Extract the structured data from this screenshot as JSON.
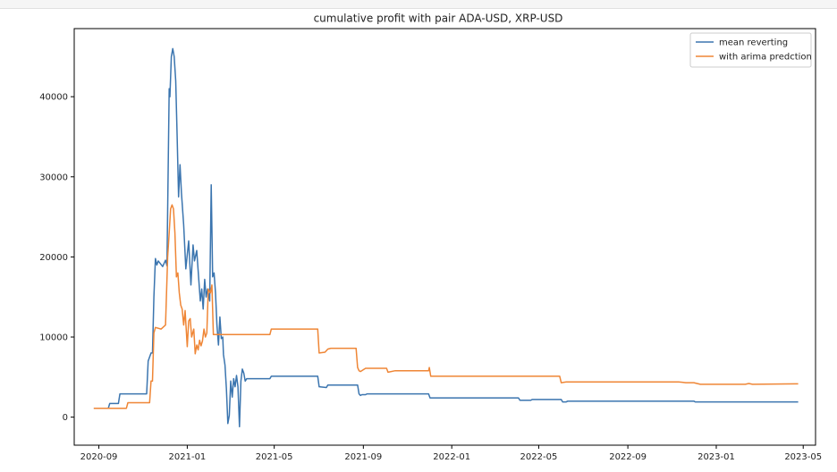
{
  "colors": {
    "series_0": "#3b75af",
    "series_1": "#ef8636"
  },
  "chart_data": {
    "type": "line",
    "title": "cumulative profit with pair ADA-USD, XRP-USD",
    "xlabel": "",
    "ylabel": "",
    "x_axis": {
      "type": "date",
      "range": [
        "2020-07-29",
        "2023-05-18"
      ],
      "ticks": [
        "2020-09-01",
        "2021-01-01",
        "2021-05-01",
        "2021-09-01",
        "2022-01-01",
        "2022-05-01",
        "2022-09-01",
        "2023-01-01",
        "2023-05-01"
      ],
      "tick_labels": [
        "2020-09",
        "2021-01",
        "2021-05",
        "2021-09",
        "2022-01",
        "2022-05",
        "2022-09",
        "2023-01",
        "2023-05"
      ]
    },
    "y_axis": {
      "range": [
        -3500,
        48500
      ],
      "ticks": [
        0,
        10000,
        20000,
        30000,
        40000
      ],
      "tick_labels": [
        "0",
        "10000",
        "20000",
        "30000",
        "40000"
      ]
    },
    "grid": false,
    "legend_position": "top-right",
    "series": [
      {
        "name": "mean reverting",
        "color": "#3b75af",
        "points": [
          [
            "2020-08-25",
            1100
          ],
          [
            "2020-09-14",
            1100
          ],
          [
            "2020-09-16",
            1700
          ],
          [
            "2020-09-28",
            1700
          ],
          [
            "2020-09-30",
            2900
          ],
          [
            "2020-11-06",
            2900
          ],
          [
            "2020-11-08",
            7000
          ],
          [
            "2020-11-12",
            8000
          ],
          [
            "2020-11-14",
            8000
          ],
          [
            "2020-11-16",
            15000
          ],
          [
            "2020-11-18",
            19800
          ],
          [
            "2020-11-20",
            19000
          ],
          [
            "2020-11-22",
            19500
          ],
          [
            "2020-11-28",
            18800
          ],
          [
            "2020-12-02",
            19600
          ],
          [
            "2020-12-04",
            18900
          ],
          [
            "2020-12-07",
            41000
          ],
          [
            "2020-12-08",
            40000
          ],
          [
            "2020-12-10",
            45000
          ],
          [
            "2020-12-12",
            46000
          ],
          [
            "2020-12-14",
            45000
          ],
          [
            "2020-12-16",
            42000
          ],
          [
            "2020-12-18",
            35000
          ],
          [
            "2020-12-20",
            27500
          ],
          [
            "2020-12-22",
            31500
          ],
          [
            "2020-12-24",
            28000
          ],
          [
            "2020-12-27",
            24000
          ],
          [
            "2020-12-30",
            18500
          ],
          [
            "2021-01-03",
            22000
          ],
          [
            "2021-01-06",
            16500
          ],
          [
            "2021-01-09",
            21500
          ],
          [
            "2021-01-11",
            19500
          ],
          [
            "2021-01-14",
            20800
          ],
          [
            "2021-01-17",
            17000
          ],
          [
            "2021-01-19",
            14500
          ],
          [
            "2021-01-21",
            16000
          ],
          [
            "2021-01-23",
            13500
          ],
          [
            "2021-01-25",
            17200
          ],
          [
            "2021-01-27",
            15000
          ],
          [
            "2021-01-29",
            16000
          ],
          [
            "2021-02-01",
            14500
          ],
          [
            "2021-02-03",
            29000
          ],
          [
            "2021-02-05",
            17500
          ],
          [
            "2021-02-07",
            18000
          ],
          [
            "2021-02-09",
            15500
          ],
          [
            "2021-02-11",
            11500
          ],
          [
            "2021-02-13",
            9000
          ],
          [
            "2021-02-15",
            12500
          ],
          [
            "2021-02-17",
            9800
          ],
          [
            "2021-02-19",
            10000
          ],
          [
            "2021-02-20",
            7800
          ],
          [
            "2021-02-22",
            6500
          ],
          [
            "2021-02-24",
            3500
          ],
          [
            "2021-02-26",
            -800
          ],
          [
            "2021-02-28",
            200
          ],
          [
            "2021-03-02",
            4500
          ],
          [
            "2021-03-04",
            2500
          ],
          [
            "2021-03-06",
            4800
          ],
          [
            "2021-03-08",
            3800
          ],
          [
            "2021-03-10",
            5200
          ],
          [
            "2021-03-12",
            3800
          ],
          [
            "2021-03-14",
            -1200
          ],
          [
            "2021-03-16",
            4500
          ],
          [
            "2021-03-18",
            6000
          ],
          [
            "2021-03-20",
            5500
          ],
          [
            "2021-03-22",
            4500
          ],
          [
            "2021-03-24",
            4800
          ],
          [
            "2021-04-25",
            4800
          ],
          [
            "2021-04-27",
            5100
          ],
          [
            "2021-06-30",
            5100
          ],
          [
            "2021-07-02",
            3800
          ],
          [
            "2021-07-12",
            3700
          ],
          [
            "2021-07-14",
            4000
          ],
          [
            "2021-08-24",
            4000
          ],
          [
            "2021-08-26",
            2900
          ],
          [
            "2021-08-28",
            2700
          ],
          [
            "2021-08-30",
            2800
          ],
          [
            "2021-09-04",
            2800
          ],
          [
            "2021-09-06",
            2900
          ],
          [
            "2021-11-30",
            2900
          ],
          [
            "2021-12-02",
            2400
          ],
          [
            "2022-04-03",
            2400
          ],
          [
            "2022-04-05",
            2100
          ],
          [
            "2022-04-20",
            2100
          ],
          [
            "2022-04-22",
            2200
          ],
          [
            "2022-06-01",
            2200
          ],
          [
            "2022-06-03",
            1900
          ],
          [
            "2022-06-08",
            1900
          ],
          [
            "2022-06-10",
            2000
          ],
          [
            "2022-12-01",
            2000
          ],
          [
            "2022-12-03",
            1900
          ],
          [
            "2023-04-24",
            1900
          ]
        ]
      },
      {
        "name": "with arima predction",
        "color": "#ef8636",
        "points": [
          [
            "2020-08-25",
            1100
          ],
          [
            "2020-10-09",
            1100
          ],
          [
            "2020-10-11",
            1800
          ],
          [
            "2020-11-10",
            1800
          ],
          [
            "2020-11-12",
            4500
          ],
          [
            "2020-11-14",
            4500
          ],
          [
            "2020-11-16",
            10500
          ],
          [
            "2020-11-18",
            11200
          ],
          [
            "2020-11-26",
            11000
          ],
          [
            "2020-12-02",
            11500
          ],
          [
            "2020-12-05",
            20000
          ],
          [
            "2020-12-07",
            23000
          ],
          [
            "2020-12-09",
            26000
          ],
          [
            "2020-12-11",
            26500
          ],
          [
            "2020-12-13",
            26000
          ],
          [
            "2020-12-15",
            23000
          ],
          [
            "2020-12-17",
            17500
          ],
          [
            "2020-12-19",
            18000
          ],
          [
            "2020-12-21",
            15500
          ],
          [
            "2020-12-23",
            14000
          ],
          [
            "2020-12-25",
            13500
          ],
          [
            "2020-12-27",
            11500
          ],
          [
            "2020-12-29",
            13300
          ],
          [
            "2021-01-01",
            8800
          ],
          [
            "2021-01-03",
            12000
          ],
          [
            "2021-01-05",
            12300
          ],
          [
            "2021-01-07",
            10000
          ],
          [
            "2021-01-10",
            11000
          ],
          [
            "2021-01-12",
            7900
          ],
          [
            "2021-01-14",
            9000
          ],
          [
            "2021-01-16",
            8400
          ],
          [
            "2021-01-18",
            9600
          ],
          [
            "2021-01-20",
            8900
          ],
          [
            "2021-01-22",
            9500
          ],
          [
            "2021-01-24",
            11000
          ],
          [
            "2021-01-26",
            10000
          ],
          [
            "2021-01-28",
            10500
          ],
          [
            "2021-01-30",
            16000
          ],
          [
            "2021-02-02",
            15500
          ],
          [
            "2021-02-04",
            16500
          ],
          [
            "2021-02-06",
            10300
          ],
          [
            "2021-04-25",
            10300
          ],
          [
            "2021-04-27",
            11000
          ],
          [
            "2021-06-30",
            11000
          ],
          [
            "2021-07-02",
            8000
          ],
          [
            "2021-07-10",
            8100
          ],
          [
            "2021-07-14",
            8500
          ],
          [
            "2021-07-18",
            8600
          ],
          [
            "2021-08-22",
            8600
          ],
          [
            "2021-08-24",
            6200
          ],
          [
            "2021-08-26",
            5800
          ],
          [
            "2021-08-28",
            5700
          ],
          [
            "2021-09-04",
            6100
          ],
          [
            "2021-10-03",
            6100
          ],
          [
            "2021-10-05",
            5600
          ],
          [
            "2021-10-15",
            5800
          ],
          [
            "2021-11-30",
            5800
          ],
          [
            "2021-12-01",
            6200
          ],
          [
            "2021-12-03",
            5100
          ],
          [
            "2022-05-30",
            5100
          ],
          [
            "2022-06-01",
            4300
          ],
          [
            "2022-06-08",
            4400
          ],
          [
            "2022-11-10",
            4400
          ],
          [
            "2022-11-20",
            4300
          ],
          [
            "2022-12-01",
            4300
          ],
          [
            "2022-12-10",
            4100
          ],
          [
            "2023-02-10",
            4100
          ],
          [
            "2023-02-15",
            4200
          ],
          [
            "2023-02-20",
            4100
          ],
          [
            "2023-04-24",
            4150
          ]
        ]
      }
    ]
  }
}
